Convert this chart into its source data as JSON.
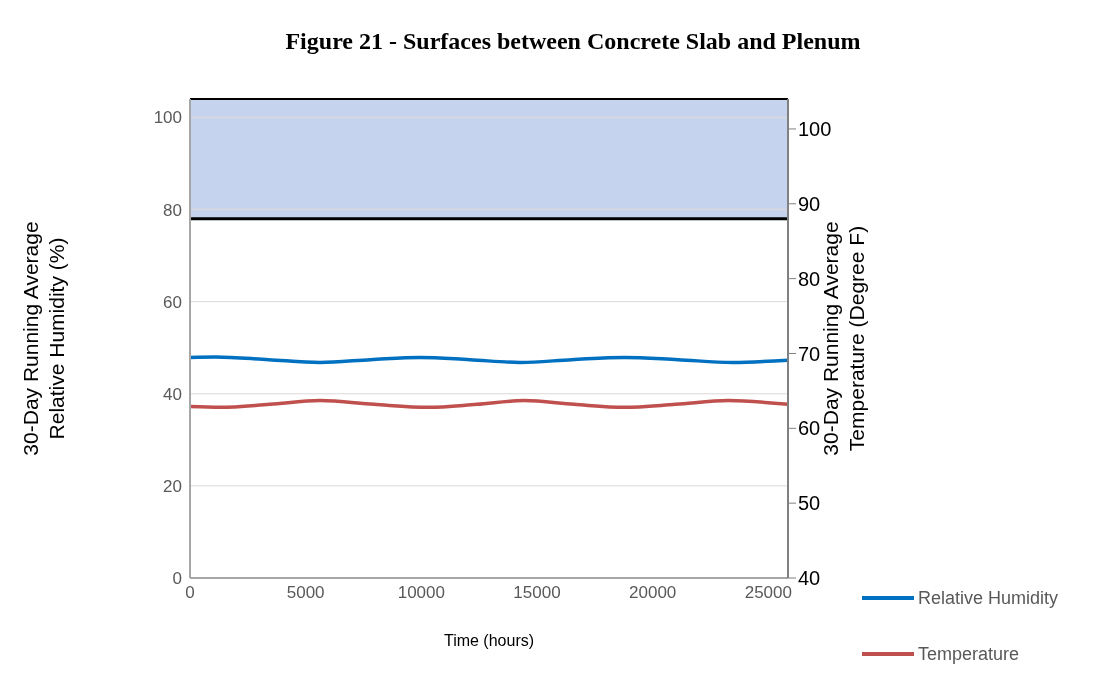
{
  "chart_data": {
    "type": "line",
    "title": "Figure 21 - Surfaces between Concrete Slab and Plenum",
    "xlabel": "Time (hours)",
    "ylabel": "30-Day Running Average Relative Humidity (%)",
    "y2label": "30-Day Running Average Temperature (Degree F)",
    "series": [
      {
        "name": "Relative Humidity",
        "color": "#0070c0",
        "x": [
          0,
          1120,
          3400,
          5620,
          7800,
          9950,
          12100,
          14270,
          16500,
          18770,
          21100,
          23440,
          25850
        ],
        "values": [
          47.9,
          48,
          47.4,
          46.8,
          47.4,
          47.9,
          47.4,
          46.8,
          47.4,
          47.9,
          47.4,
          46.8,
          47.3
        ]
      },
      {
        "name": "Temperature",
        "color": "#c0504d",
        "axis": "y2",
        "x": [
          0,
          1300,
          3450,
          5620,
          7950,
          10300,
          12400,
          14450,
          16600,
          18770,
          21000,
          23270,
          25850
        ],
        "values": [
          62.9,
          62.8,
          63.2,
          63.7,
          63.2,
          62.8,
          63.2,
          63.7,
          63.2,
          62.8,
          63.2,
          63.7,
          63.2
        ]
      }
    ],
    "xlim": [
      0,
      25850
    ],
    "xticks": [
      0,
      5000,
      10000,
      15000,
      20000,
      25000
    ],
    "ylim": [
      0,
      104
    ],
    "yticks": [
      0,
      20,
      40,
      60,
      80,
      100
    ],
    "y2lim": [
      40,
      104
    ],
    "y2ticks": [
      40,
      50,
      60,
      70,
      80,
      90,
      100
    ],
    "bands": [
      {
        "axis": "y",
        "from": 78,
        "to": 104,
        "color": "#c5d3ee"
      }
    ],
    "ref_lines": [
      {
        "axis": "y",
        "value": 78,
        "color": "#000000"
      }
    ],
    "grid": "y",
    "legend": "bottom right",
    "marker": "none",
    "line_style": "solid"
  }
}
